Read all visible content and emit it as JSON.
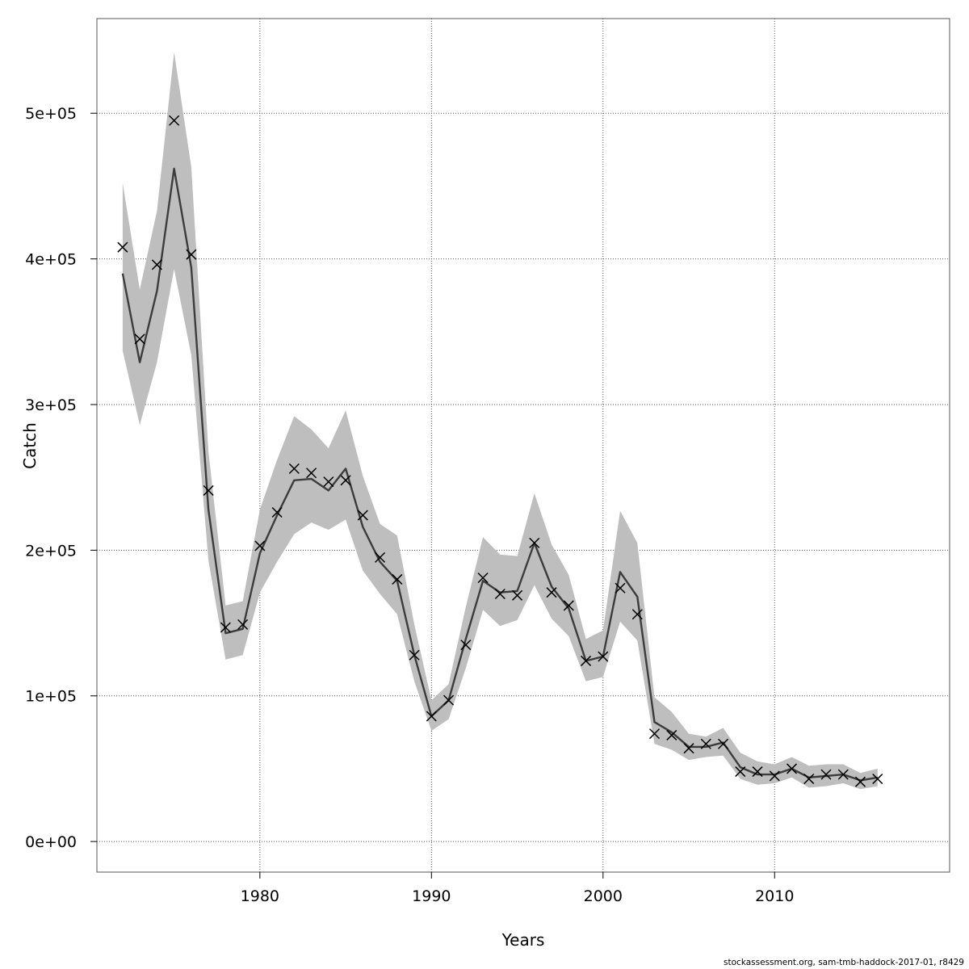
{
  "credit": "stockassessment.org, sam-tmb-haddock-2017-01, r8429",
  "chart_data": {
    "type": "line",
    "xlabel": "Years",
    "ylabel": "Catch",
    "xlim": [
      1970.5,
      2020.2
    ],
    "ylim": [
      -21000,
      565000
    ],
    "x_ticks": [
      1980,
      1990,
      2000,
      2010
    ],
    "x_tick_labels": [
      "1980",
      "1990",
      "2000",
      "2010"
    ],
    "y_ticks": [
      0,
      100000,
      200000,
      300000,
      400000,
      500000
    ],
    "y_tick_labels": [
      "0e+00",
      "1e+05",
      "2e+05",
      "3e+05",
      "4e+05",
      "5e+05"
    ],
    "grid": true,
    "colors": {
      "band": "#bebebe",
      "line": "#3c3c3c",
      "points": "#000000",
      "grid": "#555555"
    },
    "x": [
      1972,
      1973,
      1974,
      1975,
      1976,
      1977,
      1978,
      1979,
      1980,
      1981,
      1982,
      1983,
      1984,
      1985,
      1986,
      1987,
      1988,
      1989,
      1990,
      1991,
      1992,
      1993,
      1994,
      1995,
      1996,
      1997,
      1998,
      1999,
      2000,
      2001,
      2002,
      2003,
      2004,
      2005,
      2006,
      2007,
      2008,
      2009,
      2010,
      2011,
      2012,
      2013,
      2014,
      2015,
      2016
    ],
    "series": [
      {
        "role": "estimate",
        "values": [
          390000,
          329000,
          378000,
          462000,
          394000,
          228000,
          143000,
          146000,
          198000,
          224000,
          248000,
          249000,
          241000,
          256000,
          216000,
          192000,
          179000,
          128000,
          86000,
          97000,
          139000,
          179000,
          171000,
          172000,
          205000,
          175000,
          160000,
          124000,
          127000,
          185000,
          168000,
          82000,
          75000,
          65000,
          65000,
          68000,
          51000,
          46000,
          46000,
          50000,
          44000,
          45000,
          46000,
          42000,
          44000
        ]
      },
      {
        "role": "upper",
        "values": [
          452000,
          379000,
          433000,
          542000,
          463000,
          268000,
          162000,
          165000,
          228000,
          262000,
          292000,
          283000,
          270000,
          296000,
          251000,
          218000,
          210000,
          149000,
          97000,
          108000,
          161000,
          209000,
          197000,
          196000,
          239000,
          204000,
          183000,
          139000,
          145000,
          227000,
          205000,
          99000,
          89000,
          74000,
          72000,
          78000,
          61000,
          55000,
          53000,
          58000,
          52000,
          53000,
          53000,
          47000,
          50000
        ]
      },
      {
        "role": "lower",
        "values": [
          337000,
          286000,
          329000,
          393000,
          334000,
          193000,
          125000,
          128000,
          171000,
          192000,
          211000,
          219000,
          214000,
          221000,
          186000,
          170000,
          156000,
          110000,
          76000,
          84000,
          119000,
          159000,
          148000,
          152000,
          176000,
          153000,
          141000,
          110000,
          113000,
          151000,
          138000,
          67000,
          63000,
          56000,
          58000,
          59000,
          43000,
          39000,
          40000,
          44000,
          37000,
          38000,
          40000,
          36000,
          38000
        ]
      },
      {
        "role": "observed",
        "values": [
          408000,
          345000,
          396000,
          495000,
          403000,
          241000,
          147000,
          149000,
          203000,
          226000,
          256000,
          253000,
          247000,
          248000,
          224000,
          195000,
          180000,
          128000,
          86000,
          97000,
          135000,
          181000,
          170000,
          169000,
          205000,
          171000,
          162000,
          124000,
          127000,
          174000,
          156000,
          74000,
          73000,
          64000,
          67000,
          67000,
          48000,
          48000,
          45000,
          50000,
          43000,
          46000,
          46000,
          41000,
          43000
        ]
      }
    ]
  }
}
